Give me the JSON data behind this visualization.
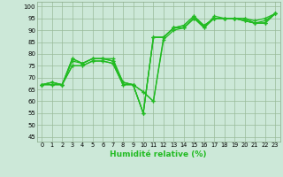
{
  "x": [
    0,
    1,
    2,
    3,
    4,
    5,
    6,
    7,
    8,
    9,
    10,
    11,
    12,
    13,
    14,
    15,
    16,
    17,
    18,
    19,
    20,
    21,
    22,
    23
  ],
  "line1": [
    67,
    68,
    67,
    78,
    76,
    78,
    78,
    78,
    68,
    67,
    64,
    60,
    87,
    91,
    92,
    96,
    91,
    96,
    95,
    95,
    95,
    94,
    95,
    97
  ],
  "line2": [
    67,
    68,
    67,
    78,
    76,
    78,
    78,
    77,
    68,
    67,
    64,
    60,
    86,
    90,
    91,
    95,
    91,
    95,
    95,
    95,
    95,
    93,
    94,
    97
  ],
  "line3": [
    67,
    68,
    67,
    77,
    76,
    78,
    78,
    77,
    68,
    67,
    55,
    87,
    87,
    91,
    92,
    96,
    92,
    95,
    95,
    95,
    94,
    93,
    93,
    97
  ],
  "line4": [
    67,
    67,
    67,
    75,
    75,
    77,
    77,
    76,
    67,
    67,
    55,
    87,
    87,
    91,
    91,
    95,
    92,
    95,
    95,
    95,
    94,
    93,
    93,
    97
  ],
  "line5": [
    67,
    67,
    67,
    75,
    75,
    77,
    77,
    76,
    67,
    67,
    55,
    87,
    87,
    91,
    91,
    95,
    92,
    95,
    95,
    95,
    94,
    93,
    93,
    97
  ],
  "line_color": "#22bb22",
  "bg_color": "#cce8d8",
  "grid_color": "#99bb99",
  "xlabel": "Humidité relative (%)",
  "ylabel_ticks": [
    45,
    50,
    55,
    60,
    65,
    70,
    75,
    80,
    85,
    90,
    95,
    100
  ],
  "ylim": [
    43,
    102
  ],
  "xlim": [
    -0.5,
    23.5
  ]
}
